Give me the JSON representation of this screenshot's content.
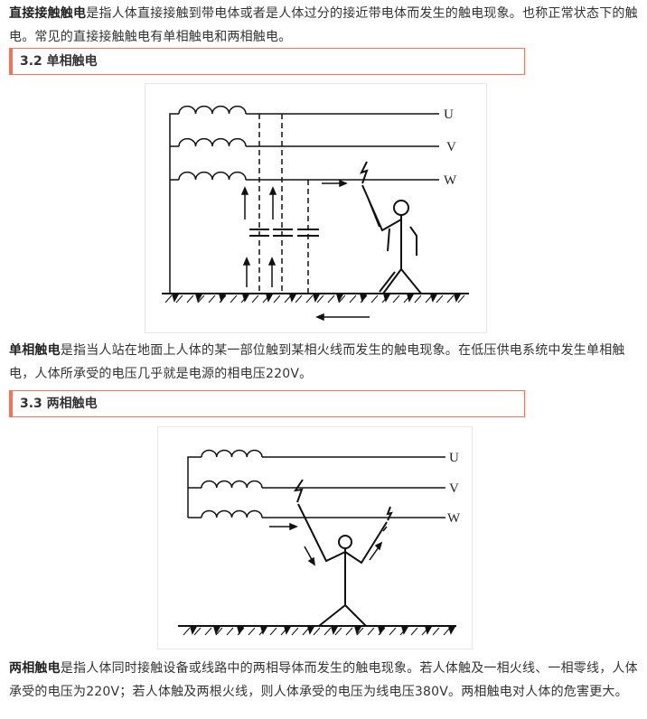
{
  "para1": {
    "term": "直接接触触电",
    "text": "是指人体直接接触到带电体或者是人体过分的接近带电体而发生的触电现象。也称正常状态下的触电。常见的直接接触触电有单相触电和两相触电。"
  },
  "heading1": "3.2 单相触电",
  "figure1": {
    "labels": [
      "U",
      "V",
      "W"
    ]
  },
  "para2": {
    "term": "单相触电",
    "text": "是指当人站在地面上人体的某一部位触到某相火线而发生的触电现象。在低压供电系统中发生单相触电，人体所承受的电压几乎就是电源的相电压220V。"
  },
  "heading2": "3.3 两相触电",
  "figure2": {
    "labels": [
      "U",
      "V",
      "W"
    ]
  },
  "para3": {
    "term": "两相触电",
    "text": "是指人体同时接触设备或线路中的两相导体而发生的触电现象。若人体触及一相火线、一相零线，人体承受的电压为220V；若人体触及两根火线，则人体承受的电压为线电压380V。两相触电对人体的危害更大。"
  },
  "colors": {
    "heading_border": "#f0735c"
  }
}
